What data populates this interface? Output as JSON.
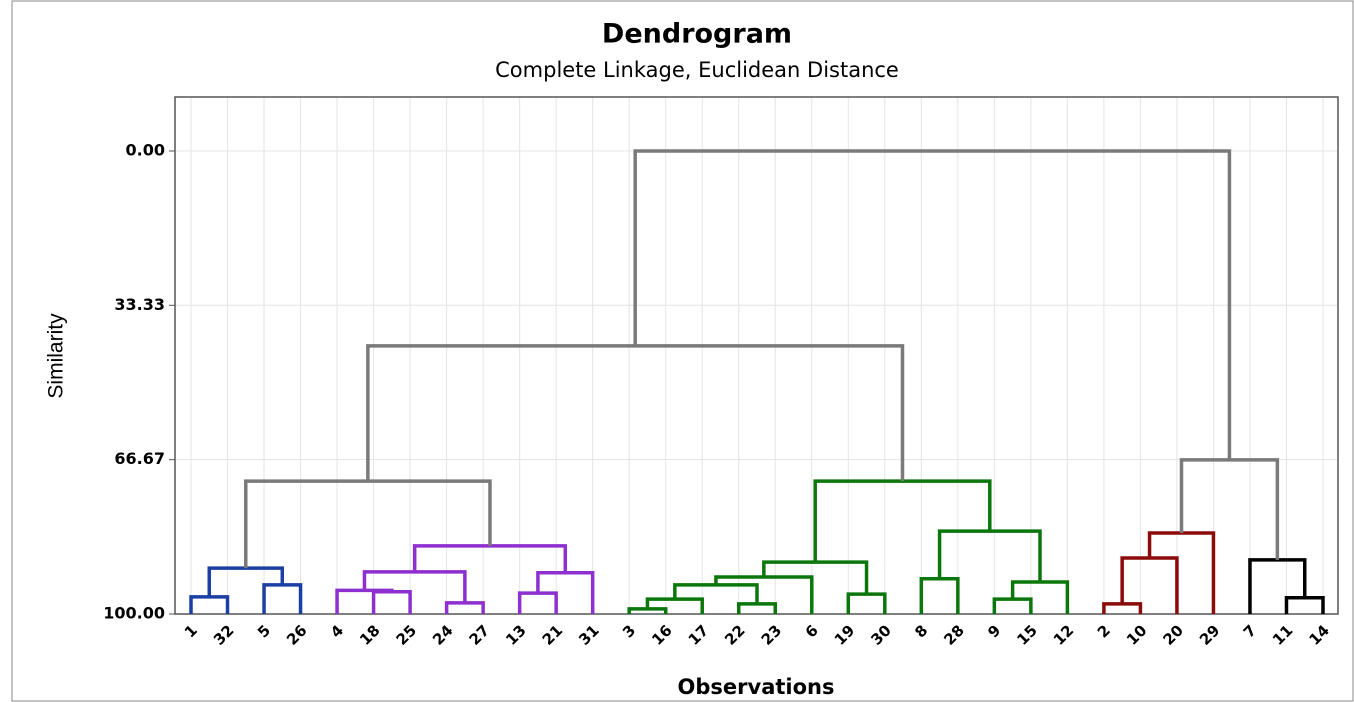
{
  "chart_data": {
    "type": "dendrogram",
    "title": "Dendrogram",
    "subtitle": "Complete Linkage, Euclidean Distance",
    "x_label": "Observations",
    "y_label": "Similarity",
    "ylim": [
      100,
      -11.66
    ],
    "yticks": [
      {
        "value": 0,
        "label": "0.00"
      },
      {
        "value": 33.33,
        "label": "33.33"
      },
      {
        "value": 66.67,
        "label": "66.67"
      },
      {
        "value": 100,
        "label": "100.00"
      }
    ],
    "grid": true,
    "tree": {
      "height": 0,
      "color": "#7a7a7a",
      "children": [
        {
          "height": 42.1,
          "children": [
            {
              "height": 71.3,
              "children": [
                {
                  "height": 90.1,
                  "color": "#1c3fa3",
                  "children": [
                    {
                      "height": 96.3,
                      "children": [
                        "1",
                        "32"
                      ]
                    },
                    {
                      "height": 93.7,
                      "children": [
                        "5",
                        "26"
                      ]
                    }
                  ]
                },
                {
                  "height": 85.3,
                  "color": "#8e2fcf",
                  "children": [
                    {
                      "height": 90.9,
                      "children": [
                        {
                          "height": 94.9,
                          "children": [
                            "4",
                            {
                              "height": 95.2,
                              "children": [
                                "18",
                                "25"
                              ]
                            }
                          ]
                        },
                        {
                          "height": 97.6,
                          "children": [
                            "24",
                            "27"
                          ]
                        }
                      ]
                    },
                    {
                      "height": 91.1,
                      "children": [
                        {
                          "height": 95.5,
                          "children": [
                            "13",
                            "21"
                          ]
                        },
                        "31"
                      ]
                    }
                  ]
                }
              ]
            },
            {
              "height": 71.3,
              "color": "#0b760b",
              "children": [
                {
                  "height": 88.8,
                  "children": [
                    {
                      "height": 92.0,
                      "children": [
                        {
                          "height": 93.7,
                          "children": [
                            {
                              "height": 96.8,
                              "children": [
                                {
                                  "height": 98.9,
                                  "children": [
                                    "3",
                                    "16"
                                  ]
                                },
                                "17"
                              ]
                            },
                            {
                              "height": 97.8,
                              "children": [
                                "22",
                                "23"
                              ]
                            }
                          ]
                        },
                        "6"
                      ]
                    },
                    {
                      "height": 95.7,
                      "children": [
                        "19",
                        "30"
                      ]
                    }
                  ]
                },
                {
                  "height": 82.1,
                  "children": [
                    {
                      "height": 92.4,
                      "children": [
                        "8",
                        "28"
                      ]
                    },
                    {
                      "height": 93.1,
                      "children": [
                        {
                          "height": 96.8,
                          "children": [
                            "9",
                            "15"
                          ]
                        },
                        "12"
                      ]
                    }
                  ]
                }
              ]
            }
          ]
        },
        {
          "height": 66.7,
          "children": [
            {
              "height": 82.5,
              "color": "#8b0a0a",
              "children": [
                {
                  "height": 87.9,
                  "children": [
                    {
                      "height": 97.8,
                      "children": [
                        "2",
                        "10"
                      ]
                    },
                    "20"
                  ]
                },
                "29"
              ]
            },
            {
              "height": 88.3,
              "color": "#000000",
              "children": [
                "7",
                {
                  "height": 96.5,
                  "children": [
                    "11",
                    "14"
                  ]
                }
              ]
            }
          ]
        }
      ]
    }
  }
}
